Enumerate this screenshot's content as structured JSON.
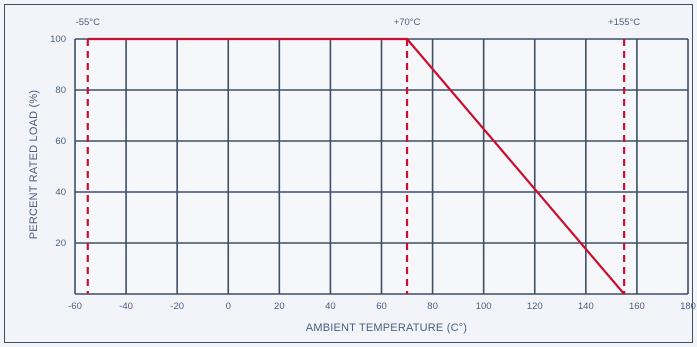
{
  "chart_data": {
    "type": "line",
    "title": "",
    "xlabel": "AMBIENT TEMPERATURE (C°)",
    "ylabel": "PERCENT RATED LOAD (%)",
    "xlim": [
      -60,
      180
    ],
    "ylim": [
      0,
      100
    ],
    "x_ticks": [
      -60,
      -40,
      -20,
      0,
      20,
      40,
      60,
      80,
      100,
      120,
      140,
      160,
      180
    ],
    "y_ticks": [
      20,
      40,
      60,
      80,
      100
    ],
    "grid": true,
    "series": [
      {
        "color": "#c8102e",
        "points": [
          [
            -55,
            100
          ],
          [
            70,
            100
          ],
          [
            155,
            0
          ]
        ]
      }
    ],
    "annotations": [
      {
        "x": -55,
        "label": "-55°C",
        "style": "dashed"
      },
      {
        "x": 70,
        "label": "+70°C",
        "style": "dashed"
      },
      {
        "x": 155,
        "label": "+155°C",
        "style": "dashed"
      }
    ],
    "colors": {
      "grid": "#3e4f66",
      "line": "#c8102e",
      "text": "#4b5f7a",
      "background": "#f3f4f9"
    }
  }
}
